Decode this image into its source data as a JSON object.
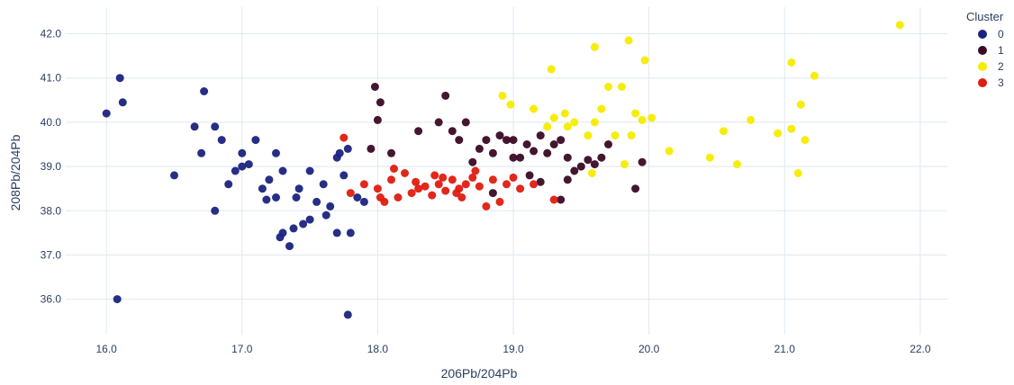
{
  "chart_data": {
    "type": "scatter",
    "xlabel": "206Pb/204Pb",
    "ylabel": "208Pb/204Pb",
    "xlim": [
      15.7,
      22.2
    ],
    "ylim": [
      35.2,
      42.6
    ],
    "xticks": [
      "16.0",
      "17.0",
      "18.0",
      "19.0",
      "20.0",
      "21.0",
      "22.0"
    ],
    "yticks": [
      "36.0",
      "37.0",
      "38.0",
      "39.0",
      "40.0",
      "41.0",
      "42.0"
    ],
    "grid": true,
    "legend": {
      "title": "Cluster",
      "placement": "top-right"
    },
    "series": [
      {
        "name": "0",
        "color": "#1a237e",
        "points": [
          [
            16.0,
            40.2
          ],
          [
            16.1,
            41.0
          ],
          [
            16.12,
            40.45
          ],
          [
            16.08,
            36.0
          ],
          [
            16.5,
            38.8
          ],
          [
            16.72,
            40.7
          ],
          [
            16.65,
            39.9
          ],
          [
            16.7,
            39.3
          ],
          [
            16.8,
            39.9
          ],
          [
            16.85,
            39.6
          ],
          [
            16.9,
            38.6
          ],
          [
            16.95,
            38.9
          ],
          [
            16.8,
            38.0
          ],
          [
            17.0,
            39.0
          ],
          [
            17.05,
            39.05
          ],
          [
            17.1,
            39.6
          ],
          [
            17.15,
            38.5
          ],
          [
            17.18,
            38.25
          ],
          [
            17.0,
            39.3
          ],
          [
            17.2,
            38.7
          ],
          [
            17.25,
            39.3
          ],
          [
            17.3,
            38.9
          ],
          [
            17.25,
            38.3
          ],
          [
            17.28,
            37.4
          ],
          [
            17.3,
            37.5
          ],
          [
            17.35,
            37.2
          ],
          [
            17.38,
            37.6
          ],
          [
            17.4,
            38.3
          ],
          [
            17.45,
            37.7
          ],
          [
            17.5,
            37.8
          ],
          [
            17.5,
            38.9
          ],
          [
            17.55,
            38.2
          ],
          [
            17.6,
            38.6
          ],
          [
            17.62,
            37.9
          ],
          [
            17.65,
            38.1
          ],
          [
            17.7,
            39.2
          ],
          [
            17.72,
            39.3
          ],
          [
            17.75,
            38.8
          ],
          [
            17.8,
            37.5
          ],
          [
            17.78,
            39.4
          ],
          [
            17.85,
            38.3
          ],
          [
            17.9,
            38.2
          ],
          [
            17.78,
            35.65
          ],
          [
            17.7,
            37.5
          ],
          [
            17.42,
            38.5
          ]
        ]
      },
      {
        "name": "1",
        "color": "#3a0a24",
        "points": [
          [
            17.98,
            40.8
          ],
          [
            18.02,
            40.45
          ],
          [
            18.0,
            40.05
          ],
          [
            17.95,
            39.4
          ],
          [
            18.1,
            39.3
          ],
          [
            18.3,
            39.8
          ],
          [
            18.45,
            40.0
          ],
          [
            18.5,
            40.6
          ],
          [
            18.55,
            39.8
          ],
          [
            18.6,
            39.6
          ],
          [
            18.65,
            40.0
          ],
          [
            18.7,
            39.1
          ],
          [
            18.75,
            39.4
          ],
          [
            18.8,
            39.6
          ],
          [
            18.85,
            39.3
          ],
          [
            18.9,
            39.7
          ],
          [
            18.95,
            39.6
          ],
          [
            19.0,
            39.6
          ],
          [
            19.05,
            39.2
          ],
          [
            19.1,
            39.5
          ],
          [
            19.15,
            39.35
          ],
          [
            19.2,
            39.7
          ],
          [
            19.25,
            39.3
          ],
          [
            19.3,
            39.5
          ],
          [
            19.35,
            39.6
          ],
          [
            19.4,
            39.2
          ],
          [
            19.45,
            38.9
          ],
          [
            19.5,
            39.0
          ],
          [
            19.55,
            39.15
          ],
          [
            19.6,
            39.05
          ],
          [
            19.65,
            39.2
          ],
          [
            19.7,
            39.5
          ],
          [
            19.9,
            38.5
          ],
          [
            19.95,
            39.1
          ],
          [
            19.35,
            38.25
          ],
          [
            19.2,
            38.65
          ],
          [
            19.4,
            38.7
          ],
          [
            18.85,
            38.4
          ],
          [
            19.0,
            39.2
          ],
          [
            19.12,
            38.8
          ]
        ]
      },
      {
        "name": "2",
        "color": "#f5ec00",
        "points": [
          [
            18.92,
            40.6
          ],
          [
            18.98,
            40.4
          ],
          [
            19.15,
            40.3
          ],
          [
            19.28,
            41.2
          ],
          [
            19.3,
            40.1
          ],
          [
            19.38,
            40.2
          ],
          [
            19.4,
            39.9
          ],
          [
            19.45,
            40.0
          ],
          [
            19.55,
            39.7
          ],
          [
            19.6,
            41.7
          ],
          [
            19.6,
            40.0
          ],
          [
            19.65,
            40.3
          ],
          [
            19.7,
            40.8
          ],
          [
            19.75,
            39.7
          ],
          [
            19.8,
            40.8
          ],
          [
            19.85,
            41.85
          ],
          [
            19.87,
            39.7
          ],
          [
            19.9,
            40.2
          ],
          [
            19.95,
            40.05
          ],
          [
            19.97,
            41.4
          ],
          [
            20.02,
            40.1
          ],
          [
            19.82,
            39.05
          ],
          [
            20.15,
            39.35
          ],
          [
            20.45,
            39.2
          ],
          [
            20.55,
            39.8
          ],
          [
            20.65,
            39.05
          ],
          [
            20.75,
            40.05
          ],
          [
            20.95,
            39.75
          ],
          [
            21.05,
            41.35
          ],
          [
            21.05,
            39.85
          ],
          [
            21.1,
            38.85
          ],
          [
            21.12,
            40.4
          ],
          [
            21.15,
            39.6
          ],
          [
            21.22,
            41.05
          ],
          [
            21.85,
            42.2
          ],
          [
            19.58,
            38.85
          ],
          [
            19.25,
            39.9
          ]
        ]
      },
      {
        "name": "3",
        "color": "#e01b0f",
        "points": [
          [
            17.75,
            39.65
          ],
          [
            17.8,
            38.4
          ],
          [
            17.9,
            38.6
          ],
          [
            18.0,
            38.5
          ],
          [
            18.05,
            38.2
          ],
          [
            18.1,
            38.7
          ],
          [
            18.15,
            38.3
          ],
          [
            18.2,
            38.85
          ],
          [
            18.25,
            38.4
          ],
          [
            18.3,
            38.5
          ],
          [
            18.35,
            38.55
          ],
          [
            18.4,
            38.35
          ],
          [
            18.45,
            38.6
          ],
          [
            18.5,
            38.45
          ],
          [
            18.55,
            38.7
          ],
          [
            18.6,
            38.5
          ],
          [
            18.65,
            38.6
          ],
          [
            18.7,
            38.75
          ],
          [
            18.75,
            38.55
          ],
          [
            18.8,
            38.1
          ],
          [
            18.85,
            38.7
          ],
          [
            18.9,
            38.2
          ],
          [
            18.95,
            38.6
          ],
          [
            19.0,
            38.75
          ],
          [
            19.05,
            38.5
          ],
          [
            19.15,
            38.6
          ],
          [
            19.3,
            38.25
          ],
          [
            18.12,
            38.95
          ],
          [
            18.28,
            38.65
          ],
          [
            18.42,
            38.8
          ],
          [
            18.58,
            38.4
          ],
          [
            18.72,
            38.9
          ],
          [
            18.62,
            38.3
          ],
          [
            18.48,
            38.75
          ],
          [
            18.02,
            38.3
          ]
        ]
      }
    ]
  }
}
